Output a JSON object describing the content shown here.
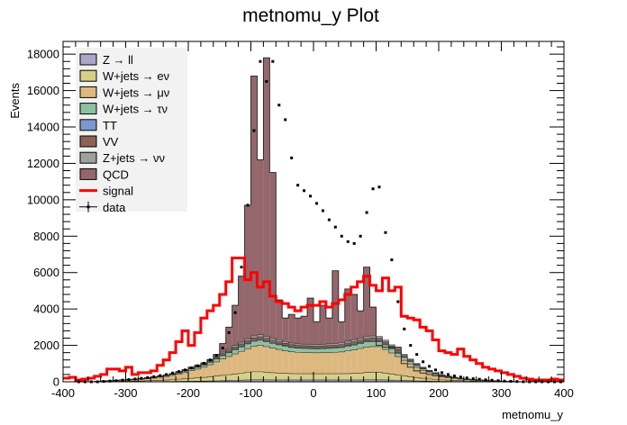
{
  "chart_data": {
    "type": "bar",
    "title": "metnomu_y Plot",
    "xlabel": "metnomu_y",
    "ylabel": "Events",
    "xlim": [
      -400,
      400
    ],
    "ylim": [
      0,
      18700
    ],
    "bin_width": 10,
    "x_ticks": [
      -400,
      -300,
      -200,
      -100,
      0,
      100,
      200,
      300,
      400
    ],
    "y_ticks": [
      0,
      2000,
      4000,
      6000,
      8000,
      10000,
      12000,
      14000,
      16000,
      18000
    ],
    "legend_position": "top-left",
    "legend": [
      {
        "label": "Z → ll",
        "kind": "box",
        "color": "#a9a6c9"
      },
      {
        "label": "W+jets → eν",
        "kind": "box",
        "color": "#d6cf87"
      },
      {
        "label": "W+jets → μν",
        "kind": "box",
        "color": "#ddb87f"
      },
      {
        "label": "W+jets → τν",
        "kind": "box",
        "color": "#8dc0a0"
      },
      {
        "label": "TT",
        "kind": "box",
        "color": "#7b98cf"
      },
      {
        "label": "VV",
        "kind": "box",
        "color": "#8f6055"
      },
      {
        "label": "Z+jets → νν",
        "kind": "box",
        "color": "#9ea29a"
      },
      {
        "label": "QCD",
        "kind": "box",
        "color": "#93676c"
      },
      {
        "label": "signal",
        "kind": "line",
        "color": "#ff0000"
      },
      {
        "label": "data",
        "kind": "marker",
        "color": "#000000"
      }
    ],
    "stack_colors": {
      "zll": "#a9a6c9",
      "wen": "#d6cf87",
      "wmn": "#ddb87f",
      "wtn": "#8dc0a0",
      "tt": "#7b98cf",
      "vv": "#8f6055",
      "znn": "#9ea29a",
      "qcd": "#93676c"
    },
    "background_total": {
      "x_low": [
        -400,
        -390,
        -380,
        -370,
        -360,
        -350,
        -340,
        -330,
        -320,
        -310,
        -300,
        -290,
        -280,
        -270,
        -260,
        -250,
        -240,
        -230,
        -220,
        -210,
        -200,
        -190,
        -180,
        -170,
        -160,
        -150,
        -140,
        -130,
        -120,
        -110,
        -100,
        -90,
        -80,
        -70,
        -60,
        -50,
        -40,
        -30,
        -20,
        -10,
        0,
        10,
        20,
        30,
        40,
        50,
        60,
        70,
        80,
        90,
        100,
        110,
        120,
        130,
        140,
        150,
        160,
        170,
        180,
        190,
        200,
        210,
        220,
        230,
        240,
        250,
        260,
        270,
        280,
        290,
        300,
        310,
        320,
        330,
        340,
        350,
        360,
        370,
        380,
        390
      ],
      "values": [
        0,
        0,
        0,
        0,
        0,
        20,
        40,
        60,
        80,
        100,
        120,
        150,
        180,
        220,
        260,
        310,
        370,
        450,
        550,
        650,
        800,
        900,
        1000,
        1200,
        1500,
        2100,
        3000,
        4200,
        5800,
        9700,
        16800,
        12200,
        17800,
        11500,
        4500,
        3500,
        3700,
        3500,
        3600,
        4600,
        3300,
        4200,
        3500,
        6100,
        3300,
        5100,
        4800,
        3900,
        6300,
        4100,
        2000,
        1900,
        1900,
        1900,
        1000,
        800,
        600,
        480,
        400,
        330,
        280,
        240,
        210,
        180,
        150,
        120,
        100,
        80,
        60,
        40,
        30,
        20,
        10,
        0,
        0,
        0,
        0,
        0,
        0,
        0
      ]
    },
    "components": {
      "zll": [
        0,
        0,
        0,
        0,
        0,
        0,
        0,
        0,
        0,
        0,
        0,
        5,
        6,
        8,
        10,
        12,
        15,
        18,
        22,
        26,
        30,
        35,
        40,
        45,
        50,
        60,
        70,
        80,
        90,
        100,
        110,
        110,
        110,
        100,
        100,
        100,
        100,
        100,
        100,
        100,
        100,
        100,
        100,
        100,
        100,
        100,
        100,
        100,
        110,
        110,
        110,
        100,
        90,
        80,
        70,
        60,
        50,
        40,
        35,
        30,
        25,
        20,
        16,
        13,
        10,
        8,
        6,
        5,
        4,
        3,
        2,
        1,
        0,
        0,
        0,
        0,
        0,
        0,
        0,
        0
      ],
      "wen": [
        0,
        0,
        0,
        0,
        0,
        5,
        10,
        15,
        20,
        25,
        30,
        35,
        40,
        50,
        60,
        70,
        80,
        100,
        120,
        140,
        160,
        180,
        200,
        230,
        260,
        290,
        320,
        350,
        380,
        420,
        440,
        440,
        420,
        400,
        380,
        360,
        350,
        340,
        340,
        340,
        340,
        340,
        340,
        340,
        340,
        350,
        360,
        380,
        400,
        420,
        420,
        380,
        340,
        300,
        260,
        220,
        180,
        150,
        120,
        100,
        80,
        70,
        60,
        50,
        40,
        30,
        25,
        20,
        15,
        10,
        8,
        5,
        3,
        0,
        0,
        0,
        0,
        0,
        0,
        0
      ],
      "wmn": [
        0,
        0,
        0,
        0,
        0,
        10,
        20,
        30,
        40,
        50,
        60,
        75,
        90,
        110,
        130,
        160,
        190,
        230,
        280,
        340,
        420,
        480,
        560,
        660,
        780,
        900,
        1000,
        1100,
        1200,
        1300,
        1400,
        1450,
        1400,
        1350,
        1300,
        1250,
        1200,
        1180,
        1170,
        1160,
        1150,
        1160,
        1170,
        1180,
        1200,
        1250,
        1300,
        1350,
        1400,
        1400,
        1400,
        1300,
        1150,
        1000,
        850,
        700,
        560,
        440,
        340,
        260,
        200,
        160,
        120,
        90,
        70,
        55,
        45,
        35,
        25,
        20,
        15,
        10,
        5,
        0,
        0,
        0,
        0,
        0,
        0,
        0
      ],
      "wtn": [
        0,
        0,
        0,
        0,
        0,
        3,
        5,
        8,
        10,
        12,
        15,
        18,
        22,
        27,
        32,
        38,
        45,
        55,
        65,
        80,
        95,
        105,
        120,
        140,
        160,
        180,
        200,
        220,
        240,
        260,
        270,
        280,
        270,
        260,
        250,
        240,
        230,
        225,
        220,
        220,
        220,
        220,
        225,
        230,
        240,
        250,
        260,
        270,
        280,
        280,
        270,
        250,
        220,
        190,
        160,
        130,
        100,
        80,
        65,
        50,
        40,
        32,
        25,
        20,
        15,
        12,
        10,
        8,
        6,
        4,
        3,
        2,
        1,
        0,
        0,
        0,
        0,
        0,
        0,
        0
      ],
      "tt": [
        0,
        0,
        0,
        0,
        0,
        1,
        2,
        3,
        4,
        5,
        6,
        7,
        8,
        10,
        12,
        14,
        16,
        18,
        20,
        22,
        25,
        28,
        30,
        32,
        35,
        38,
        40,
        42,
        44,
        46,
        48,
        50,
        50,
        48,
        46,
        44,
        42,
        40,
        40,
        40,
        40,
        40,
        40,
        40,
        42,
        44,
        46,
        48,
        50,
        50,
        48,
        44,
        40,
        36,
        32,
        28,
        24,
        20,
        16,
        13,
        10,
        8,
        6,
        5,
        4,
        3,
        2,
        2,
        1,
        1,
        0,
        0,
        0,
        0,
        0,
        0,
        0,
        0,
        0,
        0
      ],
      "vv": [
        0,
        0,
        0,
        0,
        0,
        1,
        3,
        4,
        6,
        8,
        9,
        10,
        12,
        15,
        18,
        20,
        23,
        27,
        33,
        40,
        50,
        55,
        60,
        70,
        80,
        90,
        100,
        110,
        120,
        130,
        140,
        140,
        135,
        130,
        125,
        120,
        115,
        110,
        110,
        110,
        110,
        110,
        115,
        120,
        125,
        130,
        135,
        140,
        140,
        140,
        135,
        120,
        105,
        90,
        75,
        60,
        50,
        40,
        32,
        26,
        20,
        16,
        13,
        10,
        8,
        6,
        5,
        4,
        3,
        2,
        2,
        1,
        0,
        0,
        0,
        0,
        0,
        0,
        0,
        0
      ],
      "znn": [
        0,
        0,
        0,
        0,
        0,
        0,
        0,
        0,
        0,
        0,
        0,
        2,
        4,
        6,
        8,
        10,
        12,
        16,
        20,
        25,
        30,
        35,
        40,
        50,
        60,
        70,
        80,
        90,
        100,
        110,
        120,
        120,
        115,
        110,
        105,
        100,
        95,
        90,
        90,
        90,
        90,
        90,
        95,
        100,
        105,
        110,
        115,
        120,
        120,
        120,
        115,
        100,
        85,
        70,
        60,
        50,
        40,
        32,
        25,
        20,
        15,
        12,
        9,
        7,
        5,
        4,
        3,
        2,
        1,
        1,
        0,
        0,
        0,
        0,
        0,
        0,
        0,
        0,
        0,
        0
      ]
    },
    "signal": {
      "x_low": [
        -400,
        -390,
        -380,
        -370,
        -360,
        -350,
        -340,
        -330,
        -320,
        -310,
        -300,
        -290,
        -280,
        -270,
        -260,
        -250,
        -240,
        -230,
        -220,
        -210,
        -200,
        -190,
        -180,
        -170,
        -160,
        -150,
        -140,
        -130,
        -120,
        -110,
        -100,
        -90,
        -80,
        -70,
        -60,
        -50,
        -40,
        -30,
        -20,
        -10,
        0,
        10,
        20,
        30,
        40,
        50,
        60,
        70,
        80,
        90,
        100,
        110,
        120,
        130,
        140,
        150,
        160,
        170,
        180,
        190,
        200,
        210,
        220,
        230,
        240,
        250,
        260,
        270,
        280,
        290,
        300,
        310,
        320,
        330,
        340,
        350,
        360,
        370,
        380,
        390
      ],
      "values": [
        200,
        250,
        100,
        150,
        200,
        300,
        400,
        700,
        700,
        600,
        800,
        400,
        500,
        500,
        600,
        900,
        1200,
        1600,
        2200,
        2800,
        2000,
        2700,
        3500,
        3900,
        4200,
        4800,
        5500,
        6800,
        6800,
        5600,
        6000,
        5200,
        5500,
        4700,
        4400,
        4300,
        4100,
        3900,
        4100,
        4200,
        4200,
        4400,
        4100,
        4300,
        4500,
        4800,
        5200,
        5500,
        5800,
        5300,
        5000,
        5700,
        5000,
        5200,
        3600,
        3500,
        3400,
        3000,
        2800,
        2300,
        1700,
        1600,
        1500,
        1800,
        1400,
        1200,
        1000,
        800,
        700,
        600,
        500,
        400,
        300,
        200,
        150,
        100,
        100,
        100,
        150,
        100
      ]
    },
    "data_points": {
      "x": [
        -375,
        -365,
        -355,
        -345,
        -335,
        -325,
        -315,
        -305,
        -295,
        -285,
        -275,
        -265,
        -255,
        -245,
        -235,
        -225,
        -215,
        -205,
        -195,
        -185,
        -175,
        -165,
        -155,
        -145,
        -135,
        -125,
        -115,
        -105,
        -95,
        -85,
        -75,
        -65,
        -55,
        -45,
        -35,
        -25,
        -15,
        -5,
        5,
        15,
        25,
        35,
        45,
        55,
        65,
        75,
        85,
        95,
        105,
        115,
        125,
        135,
        145,
        155,
        165,
        175,
        185,
        195,
        205,
        215,
        225,
        235,
        245,
        255,
        265,
        275,
        285,
        295,
        305,
        315,
        325,
        335,
        345,
        355,
        365,
        375,
        385,
        395
      ],
      "y": [
        0,
        0,
        0,
        0,
        20,
        40,
        60,
        90,
        120,
        150,
        190,
        230,
        280,
        340,
        400,
        480,
        560,
        650,
        760,
        880,
        1020,
        1200,
        1450,
        1850,
        2700,
        3800,
        6300,
        9700,
        13800,
        17600,
        16500,
        17600,
        15200,
        14400,
        12300,
        10800,
        10500,
        10200,
        9800,
        9400,
        8900,
        8500,
        8000,
        7700,
        7600,
        8000,
        9300,
        10600,
        10700,
        8200,
        6700,
        4400,
        2900,
        2000,
        1500,
        1100,
        850,
        650,
        500,
        400,
        320,
        260,
        210,
        170,
        140,
        110,
        85,
        60,
        40,
        25,
        15,
        5,
        0,
        0,
        0,
        0,
        0,
        0
      ]
    }
  }
}
